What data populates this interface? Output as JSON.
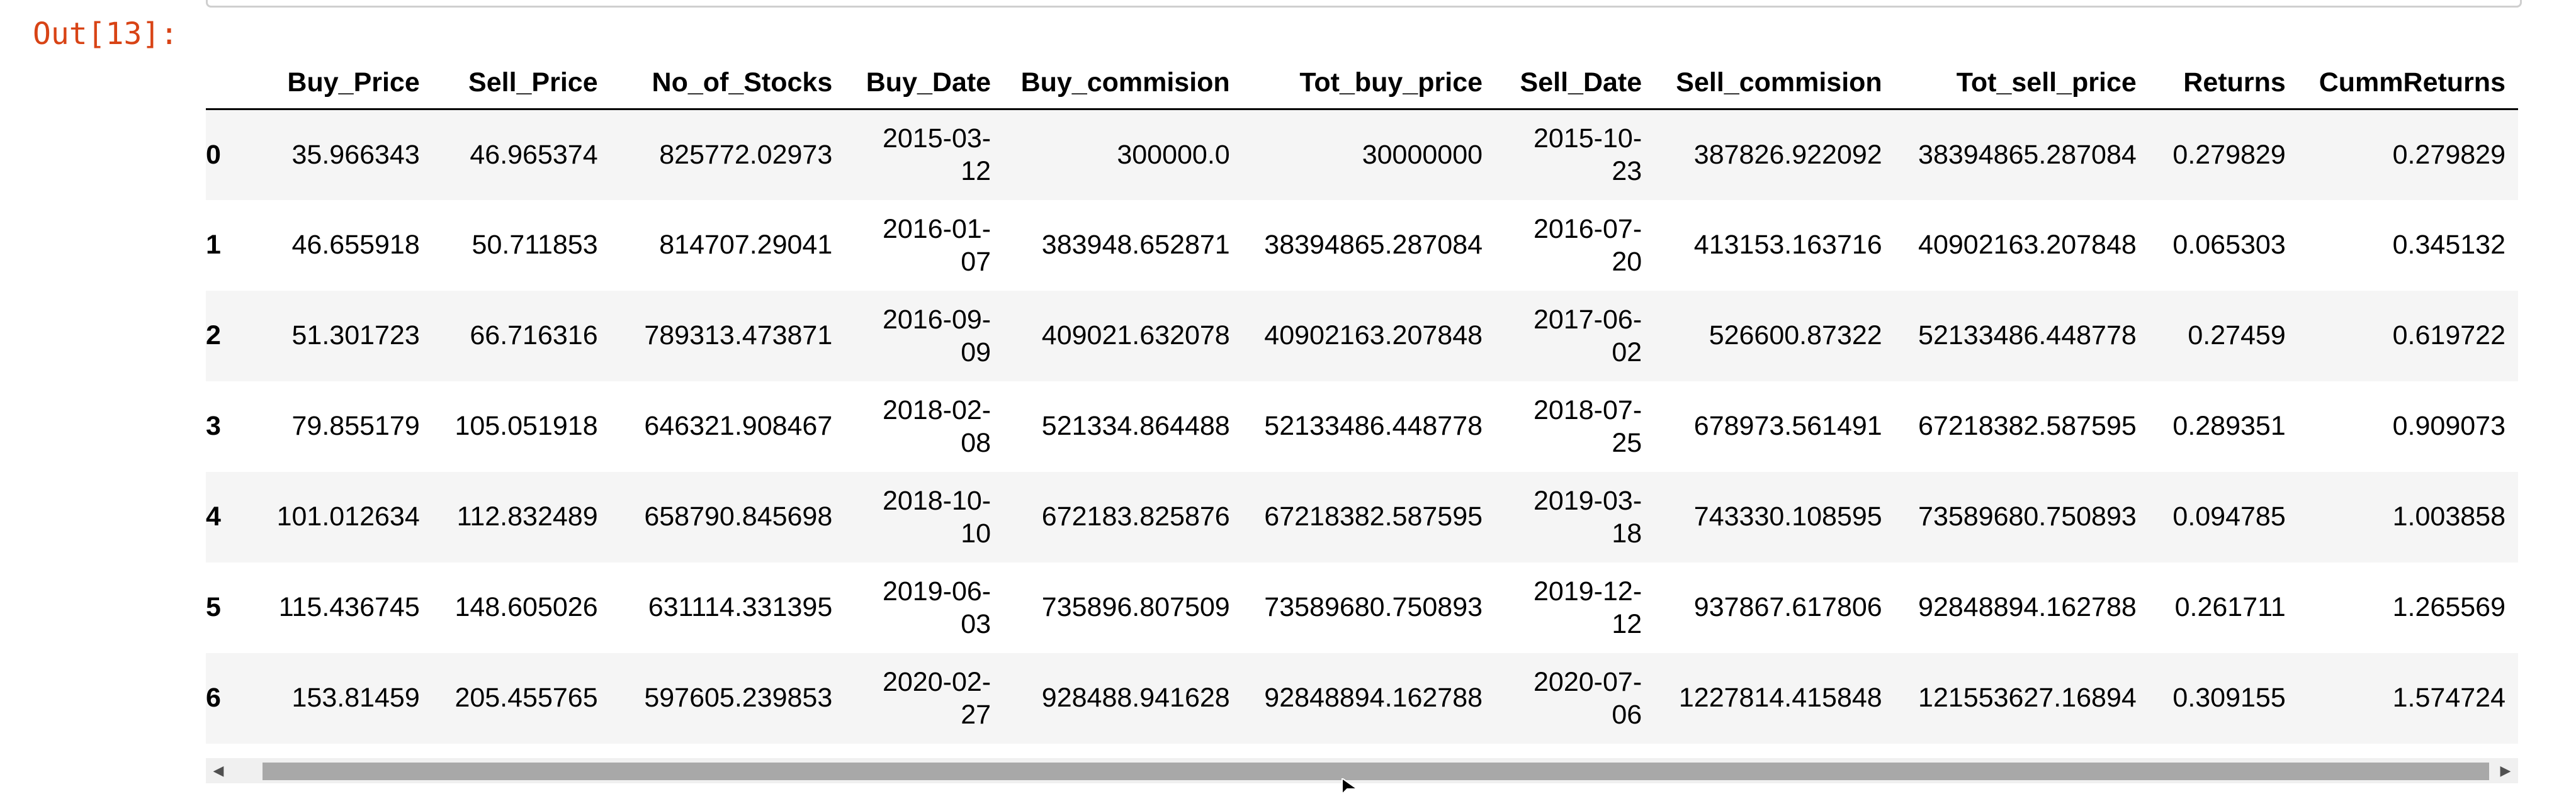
{
  "prompt_label": "Out[13]:",
  "table": {
    "columns": [
      "",
      "Buy_Price",
      "Sell_Price",
      "No_of_Stocks",
      "Buy_Date",
      "Buy_commision",
      "Tot_buy_price",
      "Sell_Date",
      "Sell_commision",
      "Tot_sell_price",
      "Returns",
      "CummReturns"
    ],
    "rows": [
      [
        "0",
        "35.966343",
        "46.965374",
        "825772.02973",
        "2015-03-12",
        "300000.0",
        "30000000",
        "2015-10-23",
        "387826.922092",
        "38394865.287084",
        "0.279829",
        "0.279829"
      ],
      [
        "1",
        "46.655918",
        "50.711853",
        "814707.29041",
        "2016-01-07",
        "383948.652871",
        "38394865.287084",
        "2016-07-20",
        "413153.163716",
        "40902163.207848",
        "0.065303",
        "0.345132"
      ],
      [
        "2",
        "51.301723",
        "66.716316",
        "789313.473871",
        "2016-09-09",
        "409021.632078",
        "40902163.207848",
        "2017-06-02",
        "526600.87322",
        "52133486.448778",
        "0.27459",
        "0.619722"
      ],
      [
        "3",
        "79.855179",
        "105.051918",
        "646321.908467",
        "2018-02-08",
        "521334.864488",
        "52133486.448778",
        "2018-07-25",
        "678973.561491",
        "67218382.587595",
        "0.289351",
        "0.909073"
      ],
      [
        "4",
        "101.012634",
        "112.832489",
        "658790.845698",
        "2018-10-10",
        "672183.825876",
        "67218382.587595",
        "2019-03-18",
        "743330.108595",
        "73589680.750893",
        "0.094785",
        "1.003858"
      ],
      [
        "5",
        "115.436745",
        "148.605026",
        "631114.331395",
        "2019-06-03",
        "735896.807509",
        "73589680.750893",
        "2019-12-12",
        "937867.617806",
        "92848894.162788",
        "0.261711",
        "1.265569"
      ],
      [
        "6",
        "153.81459",
        "205.455765",
        "597605.239853",
        "2020-02-27",
        "928488.941628",
        "92848894.162788",
        "2020-07-06",
        "1227814.415848",
        "121553627.16894",
        "0.309155",
        "1.574724"
      ]
    ]
  },
  "scrollbar": {
    "left_arrow_icon": "triangle-left-icon",
    "right_arrow_icon": "triangle-right-icon"
  },
  "cursor_icon": "mouse-pointer-icon"
}
